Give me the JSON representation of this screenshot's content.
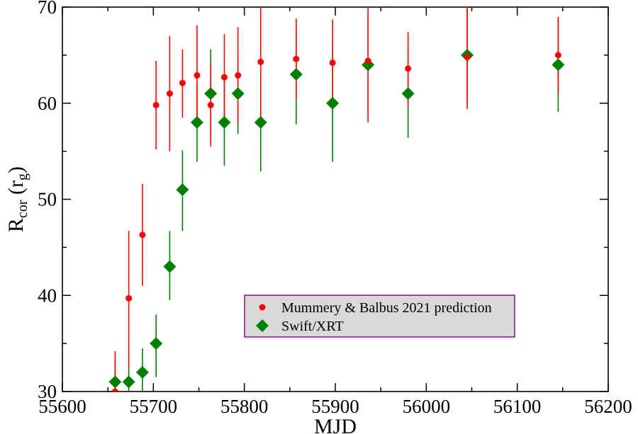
{
  "chart_data": {
    "type": "scatter",
    "title": "",
    "xlabel": "MJD",
    "ylabel": {
      "main": "R",
      "sub_main": "cor",
      "paren_main": "r",
      "paren_sub": "g"
    },
    "xlim": [
      55600,
      56200
    ],
    "ylim": [
      30,
      70
    ],
    "xticks": [
      55600,
      55700,
      55800,
      55900,
      56000,
      56100,
      56200
    ],
    "yticks": [
      30,
      40,
      50,
      60,
      70
    ],
    "legend_position": "center-right",
    "series": [
      {
        "name": "Mummery & Balbus 2021 prediction",
        "marker": "circle",
        "color": "#ff0000",
        "points": [
          {
            "x": 55658,
            "y": 30.0,
            "lo": 25.9,
            "hi": 34.2
          },
          {
            "x": 55673,
            "y": 39.7,
            "lo": 32.5,
            "hi": 46.7
          },
          {
            "x": 55688,
            "y": 46.3,
            "lo": 41.0,
            "hi": 51.6
          },
          {
            "x": 55703,
            "y": 59.8,
            "lo": 55.2,
            "hi": 64.4
          },
          {
            "x": 55718,
            "y": 61.0,
            "lo": 55.0,
            "hi": 67.0
          },
          {
            "x": 55732,
            "y": 62.1,
            "lo": 58.5,
            "hi": 65.6
          },
          {
            "x": 55748,
            "y": 62.9,
            "lo": 57.7,
            "hi": 68.1
          },
          {
            "x": 55763,
            "y": 59.8,
            "lo": 55.5,
            "hi": 64.1
          },
          {
            "x": 55778,
            "y": 62.7,
            "lo": 58.2,
            "hi": 67.2
          },
          {
            "x": 55793,
            "y": 62.9,
            "lo": 57.9,
            "hi": 67.9
          },
          {
            "x": 55818,
            "y": 64.3,
            "lo": 58.6,
            "hi": 70.0
          },
          {
            "x": 55857,
            "y": 64.6,
            "lo": 60.4,
            "hi": 68.8
          },
          {
            "x": 55897,
            "y": 64.2,
            "lo": 59.6,
            "hi": 68.7
          },
          {
            "x": 55936,
            "y": 64.4,
            "lo": 58.0,
            "hi": 70.0
          },
          {
            "x": 55980,
            "y": 63.6,
            "lo": 59.6,
            "hi": 67.4
          },
          {
            "x": 56045,
            "y": 64.8,
            "lo": 59.4,
            "hi": 70.0
          },
          {
            "x": 56145,
            "y": 65.0,
            "lo": 61.0,
            "hi": 69.0
          }
        ]
      },
      {
        "name": "Swift/XRT",
        "marker": "diamond",
        "color": "#008000",
        "points": [
          {
            "x": 55658,
            "y": 31.0,
            "lo": 28.5,
            "hi": 33.5
          },
          {
            "x": 55673,
            "y": 31.0,
            "lo": 27.5,
            "hi": 34.5
          },
          {
            "x": 55688,
            "y": 32.0,
            "lo": 29.0,
            "hi": 34.5
          },
          {
            "x": 55703,
            "y": 35.0,
            "lo": 31.5,
            "hi": 38.0
          },
          {
            "x": 55718,
            "y": 43.0,
            "lo": 39.5,
            "hi": 46.7
          },
          {
            "x": 55732,
            "y": 51.0,
            "lo": 46.7,
            "hi": 55.1
          },
          {
            "x": 55748,
            "y": 58.0,
            "lo": 53.9,
            "hi": 62.1
          },
          {
            "x": 55763,
            "y": 61.0,
            "lo": 56.5,
            "hi": 65.6
          },
          {
            "x": 55778,
            "y": 58.0,
            "lo": 53.5,
            "hi": 62.5
          },
          {
            "x": 55793,
            "y": 61.0,
            "lo": 56.8,
            "hi": 65.2
          },
          {
            "x": 55818,
            "y": 58.0,
            "lo": 52.9,
            "hi": 63.1
          },
          {
            "x": 55857,
            "y": 63.0,
            "lo": 57.8,
            "hi": 68.2
          },
          {
            "x": 55897,
            "y": 60.0,
            "lo": 53.9,
            "hi": 66.1
          },
          {
            "x": 55936,
            "y": 64.0,
            "lo": 58.8,
            "hi": 69.2
          },
          {
            "x": 55980,
            "y": 61.0,
            "lo": 56.4,
            "hi": 65.6
          },
          {
            "x": 56045,
            "y": 65.0,
            "lo": 60.2,
            "hi": 69.8
          },
          {
            "x": 56145,
            "y": 64.0,
            "lo": 59.1,
            "hi": 68.9
          }
        ]
      }
    ]
  }
}
